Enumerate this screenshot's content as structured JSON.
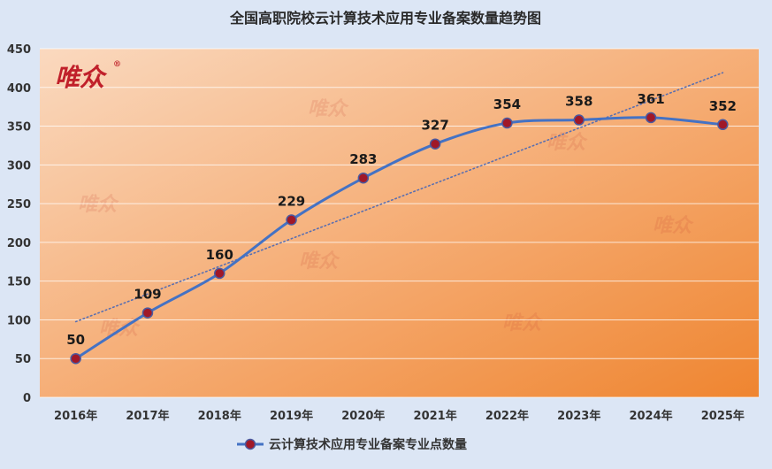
{
  "chart_data": {
    "type": "line",
    "title": "全国高职院校云计算技术应用专业备案数量趋势图",
    "categories": [
      "2016年",
      "2017年",
      "2018年",
      "2019年",
      "2020年",
      "2021年",
      "2022年",
      "2023年",
      "2024年",
      "2025年"
    ],
    "series": [
      {
        "name": "云计算技术应用专业备案专业点数量",
        "values": [
          50,
          109,
          160,
          229,
          283,
          327,
          354,
          358,
          361,
          352
        ],
        "color": "#4472c4",
        "marker_color": "#a01828",
        "data_labels": true
      }
    ],
    "trendline": {
      "type": "linear",
      "style": "dotted",
      "color": "#5a6fb0"
    },
    "ylim": [
      0,
      450
    ],
    "yticks": [
      0,
      50,
      100,
      150,
      200,
      250,
      300,
      350,
      400,
      450
    ],
    "xlabel": "",
    "ylabel": "",
    "grid": true,
    "legend_position": "bottom",
    "plot_background": [
      "#f9d5b8",
      "#f08a3a"
    ],
    "page_background": "#dce6f5"
  },
  "logo": {
    "text": "唯众",
    "mark": "®"
  },
  "watermark": "唯众"
}
